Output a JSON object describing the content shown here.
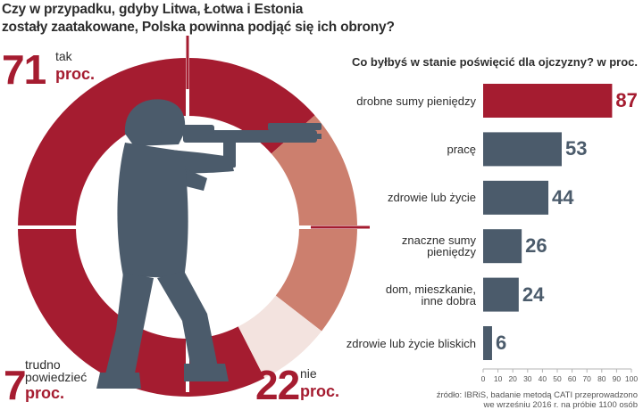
{
  "headline": {
    "line1": "Czy w przypadku, gdyby Litwa, Łotwa i Estonia",
    "line2": "zostały zaatakowane, Polska powinna podjąć się ich obrony?"
  },
  "left_chart": {
    "type": "pie",
    "slices": [
      {
        "name": "tak",
        "value": 71,
        "color": "#a51c30"
      },
      {
        "name": "nie",
        "value": 22,
        "color": "#cc7f6e"
      },
      {
        "name": "trudno powiedzieć",
        "value": 7,
        "color": "#f3e3df"
      }
    ],
    "labels": {
      "tak": {
        "number": "71",
        "word": "tak",
        "unit": "proc."
      },
      "nie": {
        "number": "22",
        "word": "nie",
        "unit": "proc."
      },
      "trudno": {
        "number": "7",
        "word_line1": "trudno",
        "word_line2": "powiedzieć",
        "unit": "proc."
      }
    }
  },
  "chart_data": {
    "type": "bar",
    "orientation": "horizontal",
    "title": "Co byłbyś w stanie poświęcić dla ojczyzny? w proc.",
    "categories": [
      [
        "drobne sumy pieniędzy"
      ],
      [
        "pracę"
      ],
      [
        "zdrowie lub życie"
      ],
      [
        "znaczne sumy",
        "pieniędzy"
      ],
      [
        "dom, mieszkanie,",
        "inne dobra"
      ],
      [
        "zdrowie lub życie bliskich"
      ]
    ],
    "values": [
      87,
      53,
      44,
      26,
      24,
      6
    ],
    "highlight_index": 0,
    "xlim": [
      0,
      100
    ],
    "xticks": [
      0,
      10,
      20,
      30,
      40,
      50,
      60,
      70,
      80,
      90,
      100
    ],
    "colors": {
      "highlight": "#a51c30",
      "default": "#4b5b6b",
      "axis": "#b5b5b5"
    }
  },
  "source": {
    "line1": "źródło: IBRiS, badanie metodą CATI przeprowadzono",
    "line2": "we wrześniu 2016 r. na próbie 1100 osób"
  },
  "illustration": {
    "icon": "soldier-aiming-rifle-icon",
    "crosshair": "crosshair-icon"
  }
}
